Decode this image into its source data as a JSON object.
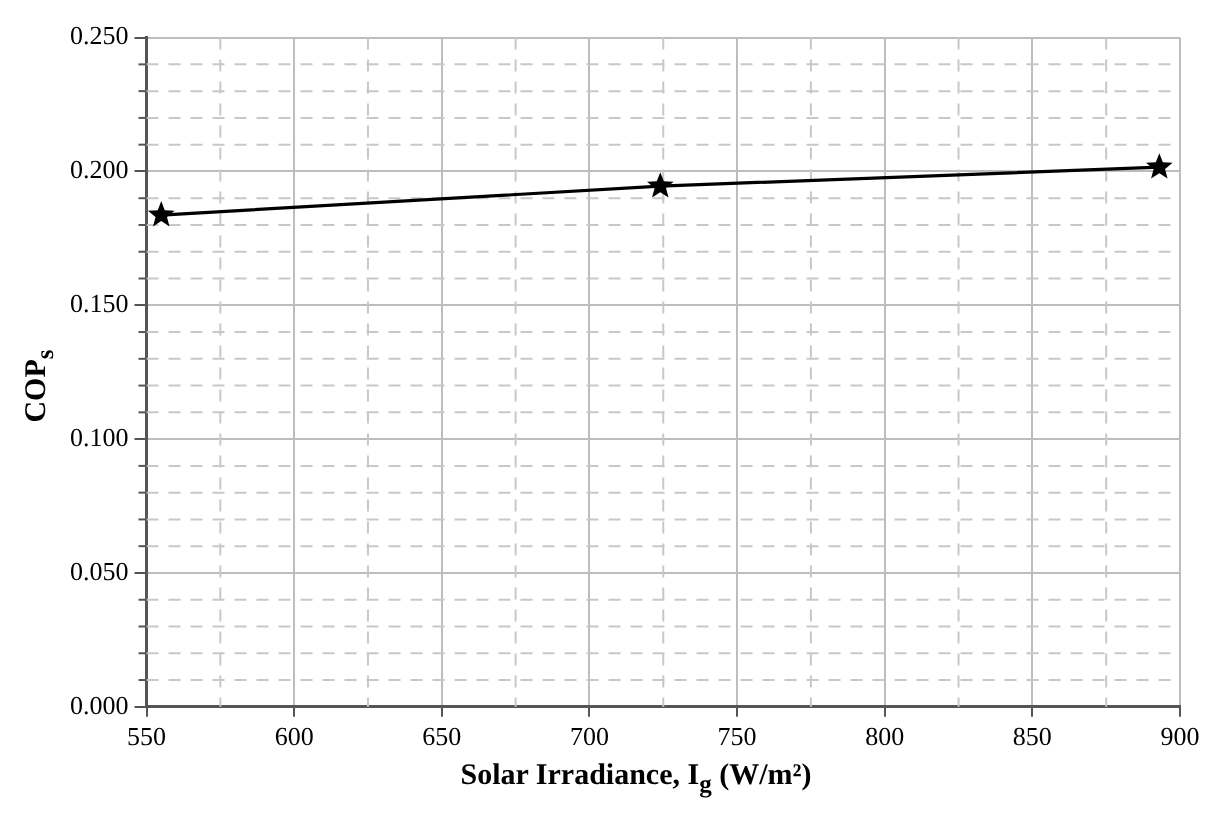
{
  "chart_data": {
    "type": "line",
    "xlabel": "Solar Irradiance, I$_{g}$ (W/m²)",
    "ylabel": "COP$_{s}$",
    "x": [
      555,
      724,
      893
    ],
    "series": [
      {
        "color": "#000000",
        "values": [
          0.1837,
          0.1945,
          0.2016
        ]
      }
    ],
    "xlim": [
      550,
      900
    ],
    "xticks": [
      550,
      600,
      650,
      700,
      750,
      800,
      850,
      900
    ],
    "ylim": [
      0,
      0.25
    ],
    "yticks": [
      {
        "value": 0,
        "label": "0.000"
      },
      {
        "value": 0.05,
        "label": "0.050"
      },
      {
        "value": 0.1,
        "label": "0.100"
      },
      {
        "value": 0.15,
        "label": "0.150"
      },
      {
        "value": 0.2,
        "label": "0.200"
      },
      {
        "value": 0.25,
        "label": "0.250"
      }
    ],
    "grid": true,
    "marker": "star",
    "line_style": "solid",
    "legend": false
  }
}
